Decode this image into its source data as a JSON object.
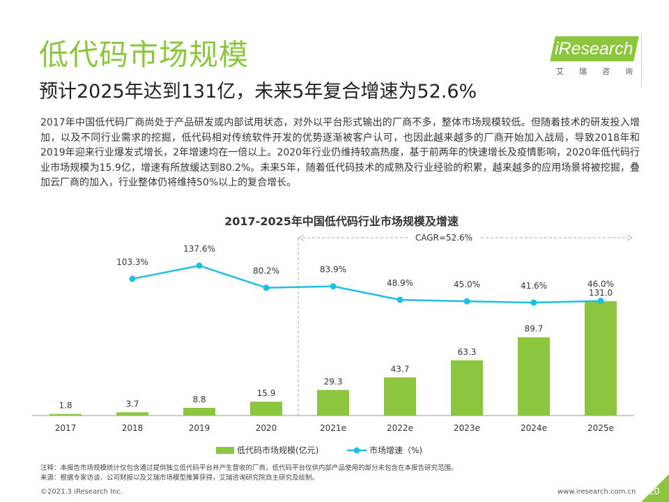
{
  "header": {
    "title": "低代码市场规模",
    "subtitle": "预计2025年达到131亿，未来5年复合增速为52.6%"
  },
  "logo": {
    "text": "iResearch",
    "sub": "艾瑞咨询"
  },
  "body": {
    "paragraph": "2017年中国低代码厂商尚处于产品研发或内部试用状态，对外以平台形式输出的厂商不多，整体市场规模较低。但随着技术的研发投入增加，以及不同行业需求的挖掘，低代码相对传统软件开发的优势逐渐被客户认可，也因此越来越多的厂商开始加入战局，导致2018年和2019年迎来行业爆发式增长，2年增速均在一倍以上。2020年行业仍维持较高热度，基于前两年的快速增长及疫情影响，2020年低代码行业市场规模为15.9亿，增速有所放缓达到80.2%。未来5年，随着低代码技术的成熟及行业经验的积累，越来越多的应用场景将被挖掘，叠加云厂商的加入，行业整体仍将维持50%以上的复合增长。"
  },
  "chart_data": {
    "type": "bar",
    "title": "2017-2025年中国低代码行业市场规模及增速",
    "categories": [
      "2017",
      "2018",
      "2019",
      "2020",
      "2021e",
      "2022e",
      "2023e",
      "2024e",
      "2025e"
    ],
    "series": [
      {
        "name": "低代码市场规模(亿元)",
        "type": "bar",
        "values": [
          1.8,
          3.7,
          8.8,
          15.9,
          29.3,
          43.7,
          63.3,
          89.7,
          131.0
        ],
        "labels": [
          "1.8",
          "3.7",
          "8.8",
          "15.9",
          "29.3",
          "43.7",
          "63.3",
          "89.7",
          "131.0"
        ],
        "color": "#8cc63f"
      },
      {
        "name": "市场增速（%)",
        "type": "line",
        "values": [
          null,
          103.3,
          137.6,
          80.2,
          83.9,
          48.9,
          45.0,
          41.6,
          46.0
        ],
        "labels": [
          "",
          "103.3%",
          "137.6%",
          "80.2%",
          "83.9%",
          "48.9%",
          "45.0%",
          "41.6%",
          "46.0%"
        ],
        "color": "#1ebfe6"
      }
    ],
    "annotation": "CAGR=52.6%",
    "annotation_range": [
      "2021e",
      "2025e"
    ],
    "legend": "bottom",
    "grid": false
  },
  "footer": {
    "note": "注释：本报告市场规模统计仅包含通过提供独立低代码平台并产生营收的厂商，低代码平台仅供内部产品使用的部分未包含在本报告研究范围。",
    "source": "来源：根据专家访谈、公司财报以及艾瑞市场模型推算获得，艾瑞咨询研究院自主研究及绘制。",
    "copyright": "©2021.3 iResearch Inc.",
    "website": "www.iresearch.com.cn",
    "page": "20"
  }
}
